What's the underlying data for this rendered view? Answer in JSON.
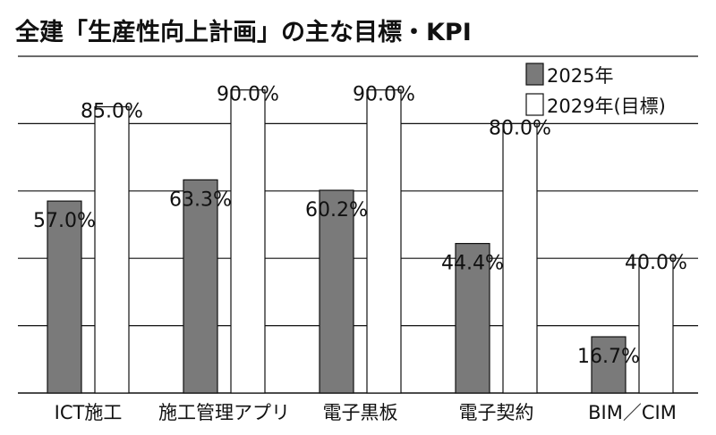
{
  "title": "全建「生産性向上計画」の主な目標・KPI",
  "colors": {
    "bar_2025": "#7a7a7a",
    "bar_2029": "#ffffff",
    "bar_stroke": "#111111",
    "grid": "#111111",
    "text": "#111111"
  },
  "chart_data": {
    "type": "bar",
    "title": "全建「生産性向上計画」の主な目標・KPI",
    "xlabel": "",
    "ylabel": "",
    "ylim": [
      0,
      100
    ],
    "grid": true,
    "legend_position": "top-right",
    "categories": [
      "ICT施工",
      "施工管理アプリ",
      "電子黒板",
      "電子契約",
      "BIM／CIM"
    ],
    "series": [
      {
        "name": "2025年",
        "values": [
          57.0,
          63.3,
          60.2,
          44.4,
          16.7
        ],
        "labels": [
          "57.0%",
          "63.3%",
          "60.2%",
          "44.4%",
          "16.7%"
        ]
      },
      {
        "name": "2029年(目標)",
        "values": [
          85.0,
          90.0,
          90.0,
          80.0,
          40.0
        ],
        "labels": [
          "85.0%",
          "90.0%",
          "90.0%",
          "80.0%",
          "40.0%"
        ]
      }
    ]
  }
}
